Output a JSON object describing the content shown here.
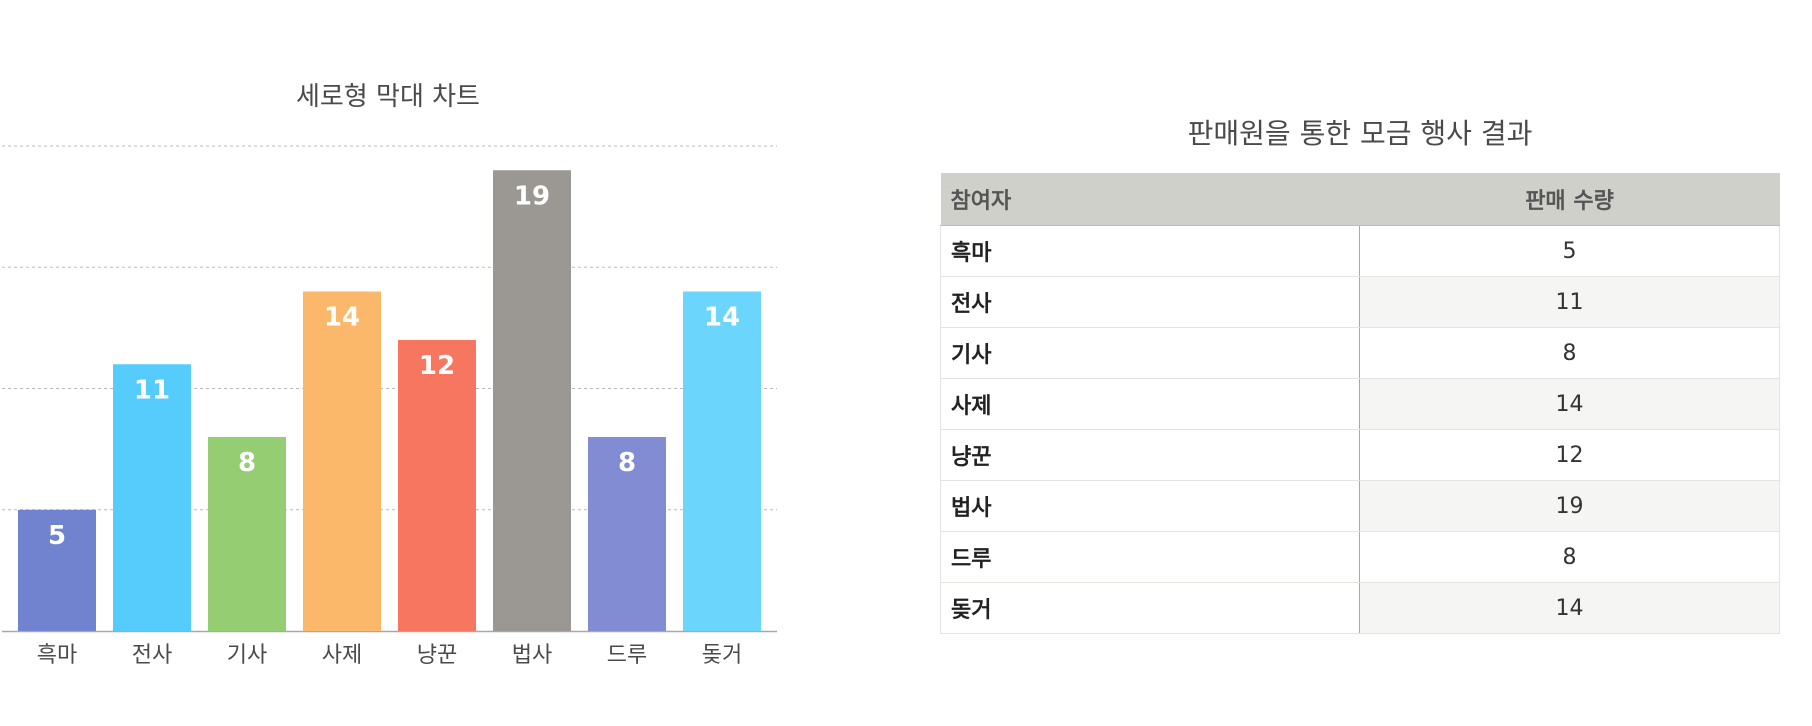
{
  "chart_data": {
    "type": "bar",
    "title": "세로형 막대 차트",
    "categories": [
      "흑마",
      "전사",
      "기사",
      "사제",
      "냥꾼",
      "법사",
      "드루",
      "돚거"
    ],
    "values": [
      5,
      11,
      8,
      14,
      12,
      19,
      8,
      14
    ],
    "colors": [
      "#7182ce",
      "#56ccfd",
      "#94cd72",
      "#fbb86a",
      "#f77660",
      "#9b9893",
      "#828cd3",
      "#6bd5fc"
    ],
    "ylim": [
      0,
      20
    ],
    "grid": true,
    "data_labels": true,
    "axis_tick_labels_shown": false
  },
  "table": {
    "title": "판매원을 통한 모금 행사 결과",
    "headers": [
      "참여자",
      "판매 수량"
    ],
    "rows": [
      [
        "흑마",
        "5"
      ],
      [
        "전사",
        "11"
      ],
      [
        "기사",
        "8"
      ],
      [
        "사제",
        "14"
      ],
      [
        "냥꾼",
        "12"
      ],
      [
        "법사",
        "19"
      ],
      [
        "드루",
        "8"
      ],
      [
        "돚거",
        "14"
      ]
    ]
  }
}
